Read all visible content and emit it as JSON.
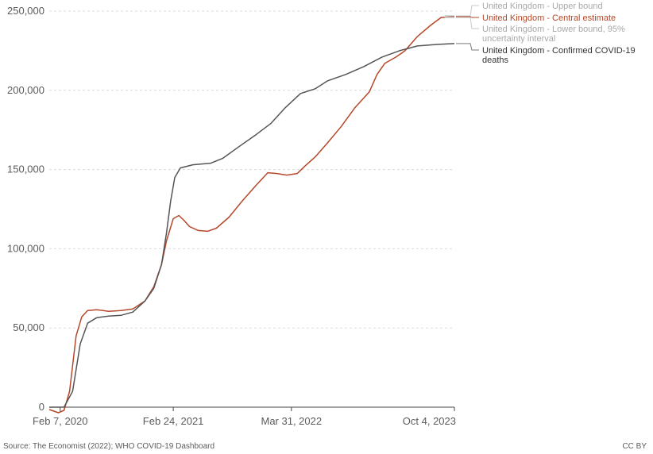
{
  "chart_data": {
    "type": "line",
    "title": "",
    "xlabel": "",
    "ylabel": "",
    "ylim": [
      0,
      250000
    ],
    "grid": true,
    "legend_placement": "right (end labels)",
    "yticks": [
      0,
      50000,
      100000,
      150000,
      200000,
      250000
    ],
    "ytick_labels": [
      "0",
      "50,000",
      "100,000",
      "150,000",
      "200,000",
      "250,000"
    ],
    "xticks": [
      {
        "date": "2020-02-07",
        "label": "Feb 7, 2020"
      },
      {
        "date": "2021-02-24",
        "label": "Feb 24, 2021"
      },
      {
        "date": "2022-03-31",
        "label": "Mar 31, 2022"
      },
      {
        "date": "2023-10-04",
        "label": "Oct 4, 2023"
      }
    ],
    "xlim": [
      "2020-01-01",
      "2023-10-04"
    ],
    "series": [
      {
        "name": "United Kingdom - Upper bound",
        "color": "#c9c9c9",
        "points": [
          [
            "2023-09-01",
            247000
          ],
          [
            "2023-10-04",
            247000
          ]
        ]
      },
      {
        "name": "United Kingdom - Central estimate",
        "color": "#b5482a",
        "points": [
          [
            "2020-01-01",
            -1500
          ],
          [
            "2020-02-01",
            -3500
          ],
          [
            "2020-02-20",
            -2000
          ],
          [
            "2020-03-10",
            10000
          ],
          [
            "2020-04-01",
            45000
          ],
          [
            "2020-04-20",
            57000
          ],
          [
            "2020-05-10",
            61000
          ],
          [
            "2020-06-10",
            61500
          ],
          [
            "2020-07-20",
            60500
          ],
          [
            "2020-08-31",
            61000
          ],
          [
            "2020-10-10",
            62000
          ],
          [
            "2020-11-20",
            67000
          ],
          [
            "2020-12-20",
            76000
          ],
          [
            "2021-01-15",
            90000
          ],
          [
            "2021-02-01",
            105000
          ],
          [
            "2021-02-24",
            119000
          ],
          [
            "2021-03-15",
            121000
          ],
          [
            "2021-04-01",
            118000
          ],
          [
            "2021-04-20",
            114000
          ],
          [
            "2021-05-20",
            111500
          ],
          [
            "2021-06-20",
            111000
          ],
          [
            "2021-07-20",
            113000
          ],
          [
            "2021-09-01",
            120000
          ],
          [
            "2021-10-15",
            130000
          ],
          [
            "2021-12-01",
            140000
          ],
          [
            "2022-01-10",
            148000
          ],
          [
            "2022-02-10",
            147500
          ],
          [
            "2022-03-15",
            146500
          ],
          [
            "2022-04-20",
            147500
          ],
          [
            "2022-05-15",
            152000
          ],
          [
            "2022-06-20",
            158000
          ],
          [
            "2022-08-01",
            167000
          ],
          [
            "2022-09-15",
            177000
          ],
          [
            "2022-11-01",
            189000
          ],
          [
            "2022-12-20",
            199000
          ],
          [
            "2023-01-15",
            210000
          ],
          [
            "2023-02-10",
            217000
          ],
          [
            "2023-03-20",
            221000
          ],
          [
            "2023-04-20",
            225000
          ],
          [
            "2023-06-01",
            234000
          ],
          [
            "2023-07-15",
            241000
          ],
          [
            "2023-08-20",
            246000
          ],
          [
            "2023-10-04",
            246500
          ]
        ]
      },
      {
        "name": "United Kingdom - Lower bound, 95% uncertainty interval",
        "color": "#c9c9c9",
        "points": [
          [
            "2023-09-01",
            246000
          ],
          [
            "2023-10-04",
            246000
          ]
        ]
      },
      {
        "name": "United Kingdom - Confirmed COVID-19 deaths",
        "color": "#555555",
        "points": [
          [
            "2020-01-01",
            0
          ],
          [
            "2020-02-20",
            0
          ],
          [
            "2020-03-20",
            10000
          ],
          [
            "2020-04-15",
            40000
          ],
          [
            "2020-05-10",
            53000
          ],
          [
            "2020-06-10",
            56500
          ],
          [
            "2020-07-20",
            57500
          ],
          [
            "2020-09-01",
            58000
          ],
          [
            "2020-10-10",
            60000
          ],
          [
            "2020-11-20",
            67000
          ],
          [
            "2020-12-20",
            75000
          ],
          [
            "2021-01-15",
            90000
          ],
          [
            "2021-02-01",
            110000
          ],
          [
            "2021-02-15",
            130000
          ],
          [
            "2021-03-01",
            145000
          ],
          [
            "2021-03-20",
            151000
          ],
          [
            "2021-05-01",
            153000
          ],
          [
            "2021-07-01",
            154000
          ],
          [
            "2021-08-10",
            157000
          ],
          [
            "2021-10-01",
            164000
          ],
          [
            "2021-12-01",
            172000
          ],
          [
            "2022-01-20",
            179000
          ],
          [
            "2022-03-10",
            189000
          ],
          [
            "2022-05-01",
            198000
          ],
          [
            "2022-06-20",
            201000
          ],
          [
            "2022-08-01",
            206000
          ],
          [
            "2022-10-01",
            210000
          ],
          [
            "2022-12-01",
            215000
          ],
          [
            "2023-02-01",
            221000
          ],
          [
            "2023-04-01",
            225000
          ],
          [
            "2023-06-01",
            228000
          ],
          [
            "2023-08-10",
            229000
          ],
          [
            "2023-10-04",
            229500
          ]
        ]
      }
    ]
  },
  "footer": {
    "source": "Source: The Economist (2022); WHO COVID-19 Dashboard",
    "license": "CC BY"
  }
}
